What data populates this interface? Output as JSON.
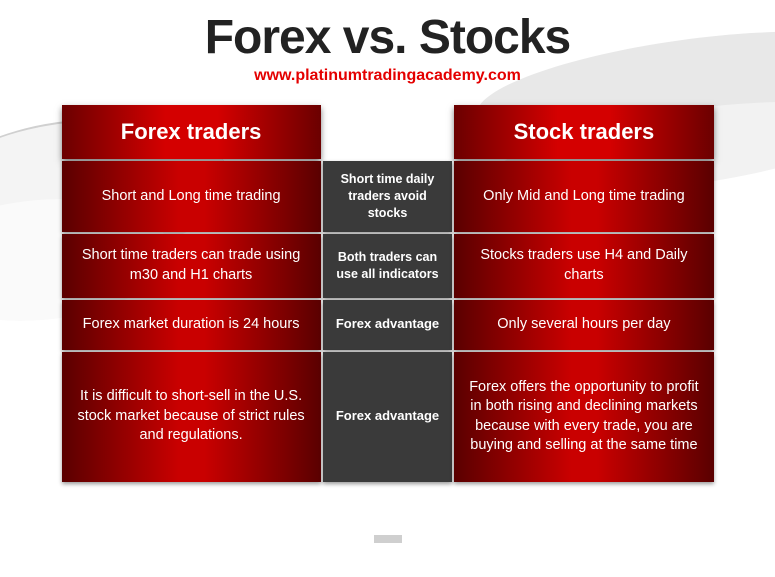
{
  "title": "Forex vs. Stocks",
  "subtitle": "www.platinumtradingacademy.com",
  "headers": {
    "left": "Forex traders",
    "right": "Stock traders"
  },
  "rows": [
    {
      "left": "Short and Long time trading",
      "mid": "Short time daily traders avoid stocks",
      "right": "Only Mid and Long time trading",
      "height": "med"
    },
    {
      "left": "Short time traders can trade using m30 and H1 charts",
      "mid": "Both traders can use all indicators",
      "right": "Stocks traders use H4 and Daily charts",
      "height": "med"
    },
    {
      "left": "Forex market duration is 24 hours",
      "mid": "Forex advantage",
      "right": "Only several hours per day",
      "height": "reg"
    },
    {
      "left": "It is difficult to short-sell in the U.S. stock market because of strict rules and regulations.",
      "mid": "Forex advantage",
      "right": "Forex offers the opportunity to profit in both rising and declining markets because with every trade, you are buying and selling at the same time",
      "height": "tall"
    }
  ],
  "colors": {
    "title": "#222222",
    "subtitle": "#e40000",
    "cell_red_gradient_start": "#5a0000",
    "cell_red_gradient_mid": "#c90000",
    "mid_cell_bg": "#3a3a3a",
    "text_white": "#ffffff",
    "background": "#ffffff"
  },
  "typography": {
    "title_fontsize": 48,
    "subtitle_fontsize": 16,
    "header_fontsize": 22,
    "side_cell_fontsize": 14.5,
    "mid_cell_fontsize": 13
  }
}
